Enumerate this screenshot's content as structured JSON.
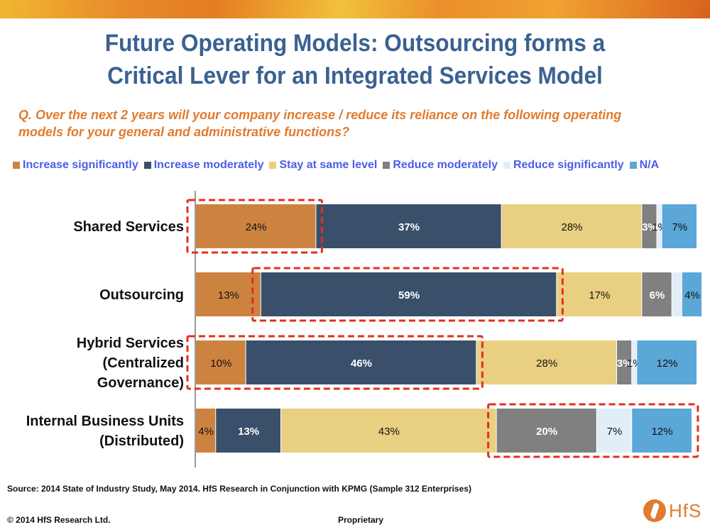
{
  "header": {
    "title_line1": "Future Operating Models: Outsourcing forms a",
    "title_line2": "Critical Lever for an Integrated Services Model",
    "question_line1": "Q. Over the next 2 years will your company increase / reduce its reliance on the following operating",
    "question_line2": "models for your general and administrative functions?"
  },
  "chart_data": {
    "type": "bar",
    "orientation": "horizontal",
    "stacked": true,
    "unit": "%",
    "title": "",
    "xlabel": "",
    "ylabel": "",
    "xlim": [
      0,
      100
    ],
    "grid": false,
    "legend_position": "top",
    "categories": [
      [
        "Shared Services"
      ],
      [
        "Outsourcing"
      ],
      [
        "Hybrid Services",
        "(Centralized",
        "Governance)"
      ],
      [
        "Internal Business Units",
        "(Distributed)"
      ]
    ],
    "series": [
      {
        "name": "Increase significantly",
        "color": "#cd8340",
        "label_color": "#111111",
        "values": [
          24,
          13,
          10,
          4
        ]
      },
      {
        "name": "Increase moderately",
        "color": "#3a4f6a",
        "label_color": "#ffffff",
        "values": [
          37,
          59,
          46,
          13
        ]
      },
      {
        "name": "Stay at same level",
        "color": "#e9cf81",
        "label_color": "#111111",
        "values": [
          28,
          17,
          28,
          43
        ]
      },
      {
        "name": "Reduce moderately",
        "color": "#808080",
        "label_color": "#ffffff",
        "values": [
          3,
          6,
          3,
          20
        ]
      },
      {
        "name": "Reduce significantly",
        "color": "#e2eef7",
        "label_color": "#111111",
        "values": [
          1,
          2,
          1,
          7
        ]
      },
      {
        "name": "N/A",
        "color": "#5ba7d8",
        "label_color": "#111111",
        "values": [
          7,
          4,
          12,
          12
        ]
      }
    ],
    "data_labels": [
      [
        "24%",
        "37%",
        "28%",
        "3%",
        "1%",
        "7%"
      ],
      [
        "13%",
        "59%",
        "17%",
        "6%",
        "",
        "4%"
      ],
      [
        "10%",
        "46%",
        "28%",
        "3%",
        "1%",
        "12%"
      ],
      [
        "4%",
        "13%",
        "43%",
        "20%",
        "7%",
        "12%"
      ]
    ],
    "annotations": [
      {
        "type": "dashed-highlight",
        "color": "#e0301e",
        "category": 0,
        "series": [
          0
        ]
      },
      {
        "type": "dashed-highlight",
        "color": "#e0301e",
        "category": 1,
        "series": [
          1
        ]
      },
      {
        "type": "dashed-highlight",
        "color": "#e0301e",
        "category": 2,
        "series": [
          0,
          1
        ]
      },
      {
        "type": "dashed-highlight",
        "color": "#e0301e",
        "category": 3,
        "series": [
          3,
          4,
          5
        ]
      }
    ]
  },
  "footer": {
    "source": "Source:  2014 State  of Industry Study, May 2014.  HfS Research in Conjunction with KPMG (Sample 312 Enterprises)",
    "copyright": "© 2014 HfS Research Ltd.",
    "proprietary": "Proprietary",
    "logo_text": "HfS"
  }
}
